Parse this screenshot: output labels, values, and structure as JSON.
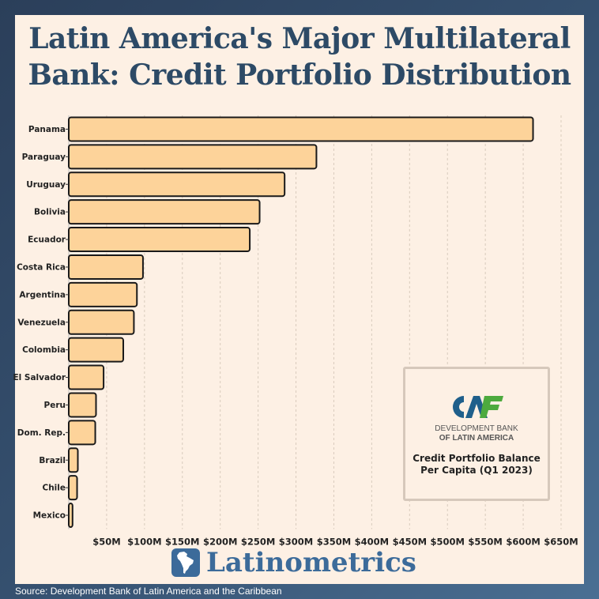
{
  "title_line1": "Latin America's Major Multilateral",
  "title_line2": "Bank: Credit Portfolio Distribution",
  "chart_data": {
    "type": "bar",
    "orientation": "horizontal",
    "categories": [
      "Panama",
      "Paraguay",
      "Uruguay",
      "Bolivia",
      "Ecuador",
      "Costa Rica",
      "Argentina",
      "Venezuela",
      "Colombia",
      "El Salvador",
      "Peru",
      "Dom. Rep.",
      "Brazil",
      "Chile",
      "Mexico"
    ],
    "values": [
      613,
      327,
      285,
      252,
      239,
      98,
      90,
      86,
      72,
      46,
      36,
      35,
      12,
      11,
      5
    ],
    "unit": "M USD",
    "xlim": [
      0,
      650
    ],
    "x_ticks": [
      50,
      100,
      150,
      200,
      250,
      300,
      350,
      400,
      450,
      500,
      550,
      600,
      650
    ],
    "x_tick_labels": [
      "$50M",
      "$100M",
      "$150M",
      "$200M",
      "$250M",
      "$300M",
      "$350M",
      "$400M",
      "$450M",
      "$500M",
      "$550M",
      "$600M",
      "$650M"
    ],
    "grid": "vertical-dashed",
    "bar_color": "#fdd39a",
    "bar_edge_color": "#1a1a1a"
  },
  "legend": {
    "logo_text": "CAF",
    "logo_line1": "DEVELOPMENT BANK",
    "logo_line2": "OF LATIN AMERICA",
    "caption_line1": "Credit Portfolio Balance",
    "caption_line2": "Per Capita (Q1 2023)",
    "logo_colors": {
      "blue": "#1f5f8b",
      "green": "#4daa3e"
    }
  },
  "brand": {
    "name": "Latinometrics",
    "icon": "latin-america-map-icon",
    "color": "#3c6b9a"
  },
  "source": "Source: Development Bank of Latin America and the Caribbean"
}
